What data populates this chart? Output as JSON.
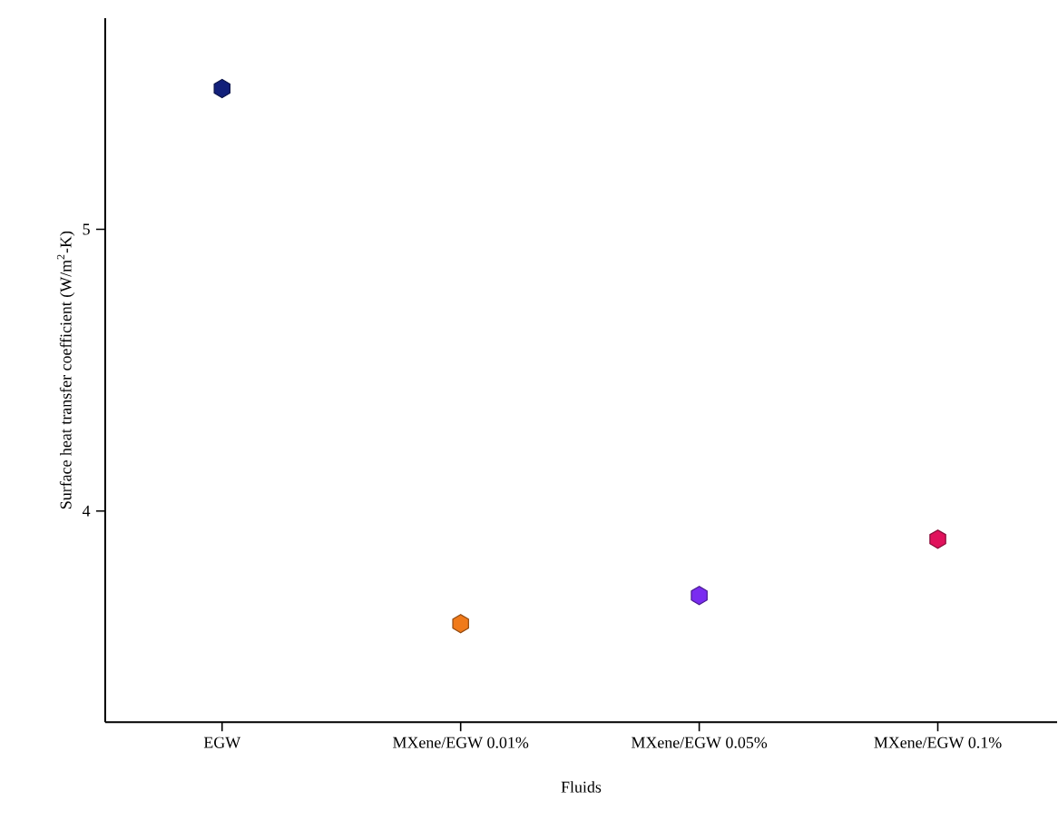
{
  "chart_data": {
    "type": "scatter",
    "xlabel": "Fluids",
    "ylabel": "Surface heat transfer coefficient (W/m$^{2}$-K)",
    "categories": [
      "EGW",
      "MXene/EGW 0.01%",
      "MXene/EGW 0.05%",
      "MXene/EGW 0.1%"
    ],
    "values": [
      5.5,
      3.6,
      3.7,
      3.9
    ],
    "colors": [
      "#12207a",
      "#f07a1a",
      "#7a2cf0",
      "#e0125c"
    ],
    "ylim": [
      3.25,
      5.75
    ],
    "yticks": [
      4,
      5
    ]
  }
}
